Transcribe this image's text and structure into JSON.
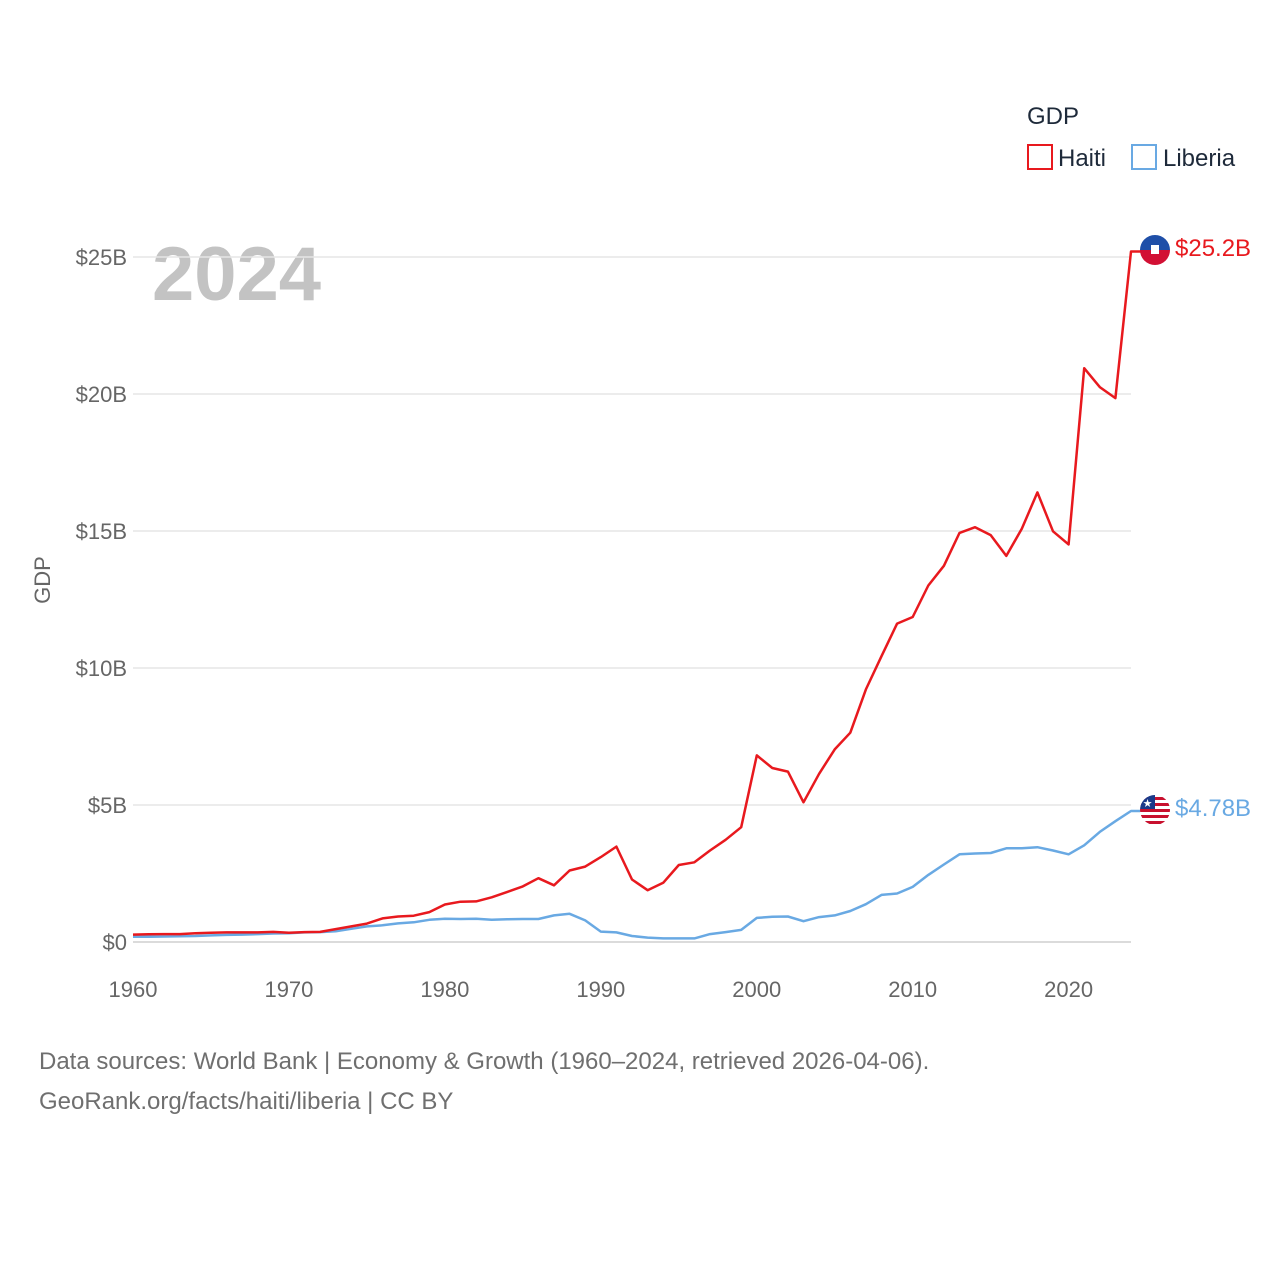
{
  "chart_data": {
    "type": "line",
    "title": "",
    "xlabel": "",
    "ylabel": "GDP",
    "year_label": "2024",
    "xlim": [
      1960,
      2024
    ],
    "ylim": [
      0,
      25
    ],
    "x_ticks": [
      1960,
      1970,
      1980,
      1990,
      2000,
      2010,
      2020
    ],
    "y_ticks": [
      {
        "value": 0,
        "label": "$0"
      },
      {
        "value": 5,
        "label": "$5B"
      },
      {
        "value": 10,
        "label": "$10B"
      },
      {
        "value": 15,
        "label": "$15B"
      },
      {
        "value": 20,
        "label": "$20B"
      },
      {
        "value": 25,
        "label": "$25B"
      }
    ],
    "legend_title": "GDP",
    "x": [
      1960,
      1961,
      1962,
      1963,
      1964,
      1965,
      1966,
      1967,
      1968,
      1969,
      1970,
      1971,
      1972,
      1973,
      1974,
      1975,
      1976,
      1977,
      1978,
      1979,
      1980,
      1981,
      1982,
      1983,
      1984,
      1985,
      1986,
      1987,
      1988,
      1989,
      1990,
      1991,
      1992,
      1993,
      1994,
      1995,
      1996,
      1997,
      1998,
      1999,
      2000,
      2001,
      2002,
      2003,
      2004,
      2005,
      2006,
      2007,
      2008,
      2009,
      2010,
      2011,
      2012,
      2013,
      2014,
      2015,
      2016,
      2017,
      2018,
      2019,
      2020,
      2021,
      2022,
      2023,
      2024
    ],
    "series": [
      {
        "name": "Haiti",
        "color": "#e8191e",
        "end_label": "$25.2B",
        "values": [
          0.27,
          0.28,
          0.29,
          0.29,
          0.32,
          0.34,
          0.35,
          0.35,
          0.35,
          0.37,
          0.34,
          0.36,
          0.37,
          0.47,
          0.57,
          0.67,
          0.86,
          0.93,
          0.96,
          1.09,
          1.37,
          1.47,
          1.48,
          1.63,
          1.83,
          2.03,
          2.33,
          2.07,
          2.61,
          2.75,
          3.1,
          3.48,
          2.28,
          1.89,
          2.16,
          2.81,
          2.91,
          3.34,
          3.73,
          4.19,
          6.81,
          6.35,
          6.22,
          5.1,
          6.14,
          7.03,
          7.64,
          9.22,
          10.43,
          11.62,
          11.86,
          13.01,
          13.73,
          14.93,
          15.14,
          14.85,
          14.09,
          15.08,
          16.41,
          14.99,
          14.51,
          20.94,
          20.25,
          19.85,
          25.2
        ]
      },
      {
        "name": "Liberia",
        "color": "#69a9e3",
        "end_label": "$4.78B",
        "values": [
          0.19,
          0.19,
          0.2,
          0.21,
          0.22,
          0.24,
          0.26,
          0.27,
          0.29,
          0.31,
          0.32,
          0.35,
          0.36,
          0.39,
          0.48,
          0.57,
          0.61,
          0.68,
          0.72,
          0.81,
          0.85,
          0.84,
          0.85,
          0.81,
          0.83,
          0.84,
          0.84,
          0.97,
          1.03,
          0.79,
          0.38,
          0.35,
          0.22,
          0.16,
          0.13,
          0.13,
          0.13,
          0.29,
          0.36,
          0.44,
          0.88,
          0.92,
          0.93,
          0.76,
          0.91,
          0.97,
          1.13,
          1.38,
          1.72,
          1.77,
          2.01,
          2.45,
          2.83,
          3.2,
          3.23,
          3.25,
          3.42,
          3.42,
          3.46,
          3.34,
          3.2,
          3.53,
          4.02,
          4.41,
          4.78
        ]
      }
    ]
  },
  "footer": {
    "line1": "Data sources: World Bank | Economy & Growth (1960–2024, retrieved 2026-04-06).",
    "line2": "GeoRank.org/facts/haiti/liberia | CC BY"
  },
  "flags": {
    "haiti": "haiti-flag-icon",
    "liberia": "liberia-flag-icon"
  }
}
